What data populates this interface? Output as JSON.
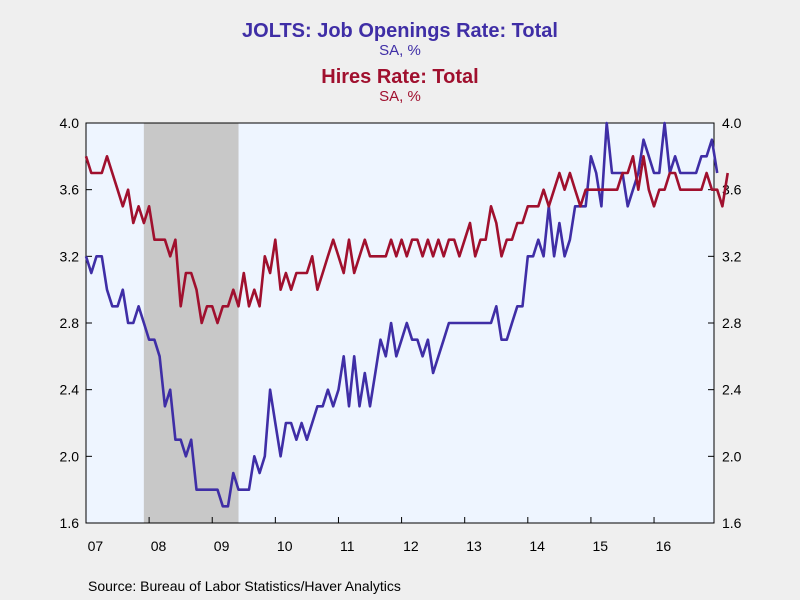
{
  "chart_data": {
    "type": "line",
    "title_1": "JOLTS: Job Openings Rate: Total",
    "subtitle_1": "SA, %",
    "title_2": "Hires Rate: Total",
    "subtitle_2": "SA, %",
    "x_start": "2007-01",
    "x_ticks": [
      "07",
      "08",
      "09",
      "10",
      "11",
      "12",
      "13",
      "14",
      "15",
      "16"
    ],
    "ylim": [
      1.6,
      4.0
    ],
    "y_ticks": [
      1.6,
      2.0,
      2.4,
      2.8,
      3.2,
      3.6,
      4.0
    ],
    "y_tick_labels": [
      "1.6",
      "2.0",
      "2.4",
      "2.8",
      "3.2",
      "3.6",
      "4.0"
    ],
    "recession": {
      "start": "2007-12",
      "end": "2009-06"
    },
    "grid": false,
    "series": [
      {
        "name": "JOLTS: Job Openings Rate: Total",
        "color": "#3f2ea6",
        "values": [
          3.2,
          3.1,
          3.2,
          3.2,
          3.0,
          2.9,
          2.9,
          3.0,
          2.8,
          2.8,
          2.9,
          2.8,
          2.7,
          2.7,
          2.6,
          2.3,
          2.4,
          2.1,
          2.1,
          2.0,
          2.1,
          1.8,
          1.8,
          1.8,
          1.8,
          1.8,
          1.7,
          1.7,
          1.9,
          1.8,
          1.8,
          1.8,
          2.0,
          1.9,
          2.0,
          2.4,
          2.2,
          2.0,
          2.2,
          2.2,
          2.1,
          2.2,
          2.1,
          2.2,
          2.3,
          2.3,
          2.4,
          2.3,
          2.4,
          2.6,
          2.3,
          2.6,
          2.3,
          2.5,
          2.3,
          2.5,
          2.7,
          2.6,
          2.8,
          2.6,
          2.7,
          2.8,
          2.7,
          2.7,
          2.6,
          2.7,
          2.5,
          2.6,
          2.7,
          2.8,
          2.8,
          2.8,
          2.8,
          2.8,
          2.8,
          2.8,
          2.8,
          2.8,
          2.9,
          2.7,
          2.7,
          2.8,
          2.9,
          2.9,
          3.2,
          3.2,
          3.3,
          3.2,
          3.5,
          3.2,
          3.4,
          3.2,
          3.3,
          3.5,
          3.5,
          3.5,
          3.8,
          3.7,
          3.5,
          4.0,
          3.7,
          3.7,
          3.7,
          3.5,
          3.6,
          3.7,
          3.9,
          3.8,
          3.7,
          3.7,
          4.0,
          3.7,
          3.8,
          3.7,
          3.7,
          3.7,
          3.7,
          3.8,
          3.8,
          3.9,
          3.7
        ]
      },
      {
        "name": "Hires Rate: Total",
        "color": "#a0102e",
        "values": [
          3.8,
          3.7,
          3.7,
          3.7,
          3.8,
          3.7,
          3.6,
          3.5,
          3.6,
          3.4,
          3.5,
          3.4,
          3.5,
          3.3,
          3.3,
          3.3,
          3.2,
          3.3,
          2.9,
          3.1,
          3.1,
          3.0,
          2.8,
          2.9,
          2.9,
          2.8,
          2.9,
          2.9,
          3.0,
          2.9,
          3.1,
          2.9,
          3.0,
          2.9,
          3.2,
          3.1,
          3.3,
          3.0,
          3.1,
          3.0,
          3.1,
          3.1,
          3.1,
          3.2,
          3.0,
          3.1,
          3.2,
          3.3,
          3.2,
          3.1,
          3.3,
          3.1,
          3.2,
          3.3,
          3.2,
          3.2,
          3.2,
          3.2,
          3.3,
          3.2,
          3.3,
          3.2,
          3.3,
          3.3,
          3.2,
          3.3,
          3.2,
          3.3,
          3.2,
          3.3,
          3.3,
          3.2,
          3.3,
          3.4,
          3.2,
          3.3,
          3.3,
          3.5,
          3.4,
          3.2,
          3.3,
          3.3,
          3.4,
          3.4,
          3.5,
          3.5,
          3.5,
          3.6,
          3.5,
          3.6,
          3.7,
          3.6,
          3.7,
          3.6,
          3.5,
          3.6,
          3.6,
          3.6,
          3.6,
          3.6,
          3.6,
          3.6,
          3.7,
          3.7,
          3.8,
          3.6,
          3.8,
          3.6,
          3.5,
          3.6,
          3.6,
          3.7,
          3.7,
          3.6,
          3.6,
          3.6,
          3.6,
          3.6,
          3.7,
          3.6,
          3.6,
          3.5,
          3.7
        ]
      }
    ]
  },
  "source_text": "Source:  Bureau of Labor Statistics/Haver Analytics"
}
